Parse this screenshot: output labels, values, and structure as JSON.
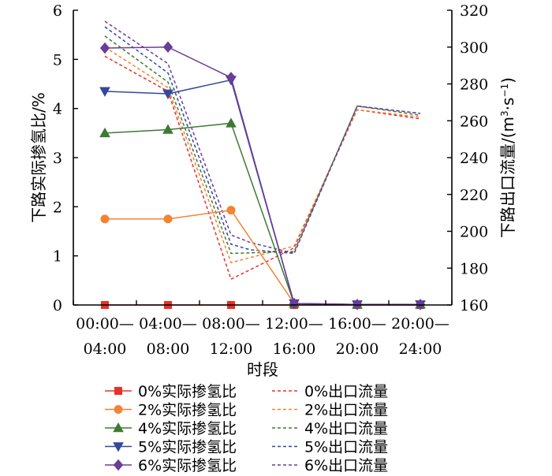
{
  "chart_data": {
    "type": "line",
    "title": "",
    "xlabel": "时段",
    "ylabel_left": "下路实际掺氢比/%",
    "ylabel_right_main": "下路出口流量/",
    "ylabel_right_unit": "(m",
    "ylabel_right_unit_exp": "3",
    "ylabel_right_unit_mid": "·s",
    "ylabel_right_unit_exp2": "−1",
    "ylabel_right_unit_close": ")",
    "categories_top": [
      "00:00—",
      "04:00—",
      "08:00—",
      "12:00—",
      "16:00—",
      "20:00—"
    ],
    "categories_bottom": [
      "04:00",
      "08:00",
      "12:00",
      "16:00",
      "20:00",
      "24:00"
    ],
    "ylim_left": [
      0,
      6
    ],
    "yticks_left": [
      "0",
      "1",
      "2",
      "3",
      "4",
      "5",
      "6"
    ],
    "ylim_right": [
      160,
      320
    ],
    "yticks_right": [
      "160",
      "180",
      "200",
      "220",
      "240",
      "260",
      "280",
      "300",
      "320"
    ],
    "series_ratio": [
      {
        "name": "0%实际掺氢比",
        "color": "#e8312a",
        "marker": "square",
        "values": [
          0,
          0,
          0,
          0,
          0,
          0
        ]
      },
      {
        "name": "2%实际掺氢比",
        "color": "#f28432",
        "marker": "circle",
        "values": [
          1.75,
          1.75,
          1.93,
          0.03,
          0.01,
          0.01
        ]
      },
      {
        "name": "4%实际掺氢比",
        "color": "#3e7a35",
        "marker": "triangle-up",
        "values": [
          3.5,
          3.57,
          3.7,
          0.03,
          0.01,
          0.01
        ]
      },
      {
        "name": "5%实际掺氢比",
        "color": "#34489b",
        "marker": "triangle-down",
        "values": [
          4.35,
          4.3,
          4.58,
          0.03,
          0.01,
          0.01
        ]
      },
      {
        "name": "6%实际掺氢比",
        "color": "#6c3c97",
        "marker": "diamond",
        "values": [
          5.23,
          5.25,
          4.63,
          0.03,
          0.01,
          0.01
        ]
      }
    ],
    "series_flow": [
      {
        "name": "0%出口流量",
        "color": "#e8312a",
        "x": [
          0,
          1,
          2,
          3,
          4,
          5
        ],
        "values": [
          295,
          276,
          174,
          191,
          266,
          261
        ]
      },
      {
        "name": "2%出口流量",
        "color": "#f28432",
        "x": [
          0,
          1,
          2,
          3,
          4,
          5
        ],
        "values": [
          300,
          278,
          183,
          192,
          266,
          262
        ]
      },
      {
        "name": "4%出口流量",
        "color": "#3e7a35",
        "x": [
          0,
          1,
          2,
          3,
          4,
          5
        ],
        "values": [
          306,
          281,
          188,
          189,
          268,
          263
        ]
      },
      {
        "name": "5%出口流量",
        "color": "#34489b",
        "x": [
          0,
          1,
          2,
          2.3,
          3,
          4,
          5
        ],
        "values": [
          311,
          286,
          193,
          190,
          188,
          268,
          264
        ]
      },
      {
        "name": "6%出口流量",
        "color": "#6c3c97",
        "x": [
          0,
          1,
          2,
          2.3,
          3,
          4,
          5
        ],
        "values": [
          314,
          291,
          198,
          194,
          188,
          268,
          264
        ]
      }
    ],
    "legend_position": "bottom-center"
  }
}
